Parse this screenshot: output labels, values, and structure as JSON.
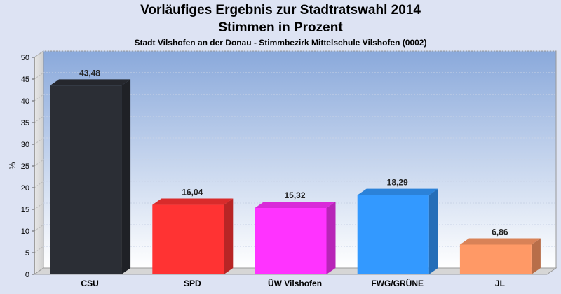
{
  "chart_data": {
    "type": "bar",
    "title": "Vorläufiges Ergebnis zur Stadtratswahl 2014",
    "subtitle": "Stimmen in Prozent",
    "subtitle2": "Stadt Vilshofen an der Donau - Stimmbezirk  Mittelschule Vilshofen (0002)",
    "ylabel": "%",
    "xlabel": "",
    "ylim": [
      0,
      50
    ],
    "yticks": [
      0,
      5,
      10,
      15,
      20,
      25,
      30,
      35,
      40,
      45,
      50
    ],
    "grid": true,
    "categories": [
      "CSU",
      "SPD",
      "ÜW Vilshofen",
      "FWG/GRÜNE",
      "JL"
    ],
    "values": [
      43.48,
      16.04,
      15.32,
      18.29,
      6.86
    ],
    "value_labels": [
      "43,48",
      "16,04",
      "15,32",
      "18,29",
      "6,86"
    ],
    "colors": [
      "#2b2e35",
      "#ff3333",
      "#ff33ff",
      "#3399ff",
      "#ff9966"
    ]
  }
}
